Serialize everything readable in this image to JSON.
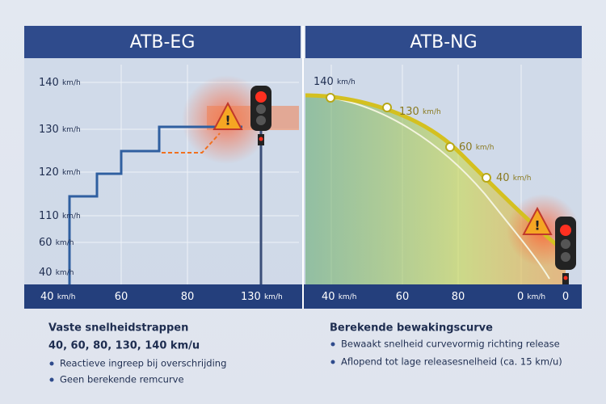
{
  "panels": [
    {
      "title": "ATB-EG",
      "y_labels": [
        {
          "value": "140",
          "unit": "km/h"
        },
        {
          "value": "130",
          "unit": "km/h"
        },
        {
          "value": "120",
          "unit": "km/h"
        },
        {
          "value": "110",
          "unit": "km/h"
        },
        {
          "value": "60",
          "unit": "km/h"
        },
        {
          "value": "40",
          "unit": "km/h"
        }
      ],
      "x_labels": [
        {
          "value": "40",
          "unit": "km/h"
        },
        {
          "value": "60"
        },
        {
          "value": "80"
        },
        {
          "value": "130",
          "unit": "km/h"
        }
      ],
      "heading": "Vaste snelheidstrappen",
      "subheading": "40, 60, 80, 130, 140 km/u",
      "bullets": [
        "Reactieve ingreep bij overschrijding",
        "Geen berekende remcurve"
      ]
    },
    {
      "title": "ATB-NG",
      "curve_labels": [
        {
          "value": "140",
          "unit": "km/h"
        },
        {
          "value": "130",
          "unit": "km/h"
        },
        {
          "value": "60",
          "unit": "km/h"
        },
        {
          "value": "40",
          "unit": "km/h"
        }
      ],
      "x_labels": [
        {
          "value": "40",
          "unit": "km/h"
        },
        {
          "value": "60"
        },
        {
          "value": "80"
        },
        {
          "value": "0",
          "unit": "km/h"
        },
        {
          "value": "0"
        }
      ],
      "heading": "Berekende bewakingscurve",
      "bullets": [
        "Bewaakt snelheid curvevormig richting release",
        "Aflopend tot lage releasesnelheid (ca. 15 km/u)"
      ]
    }
  ]
}
